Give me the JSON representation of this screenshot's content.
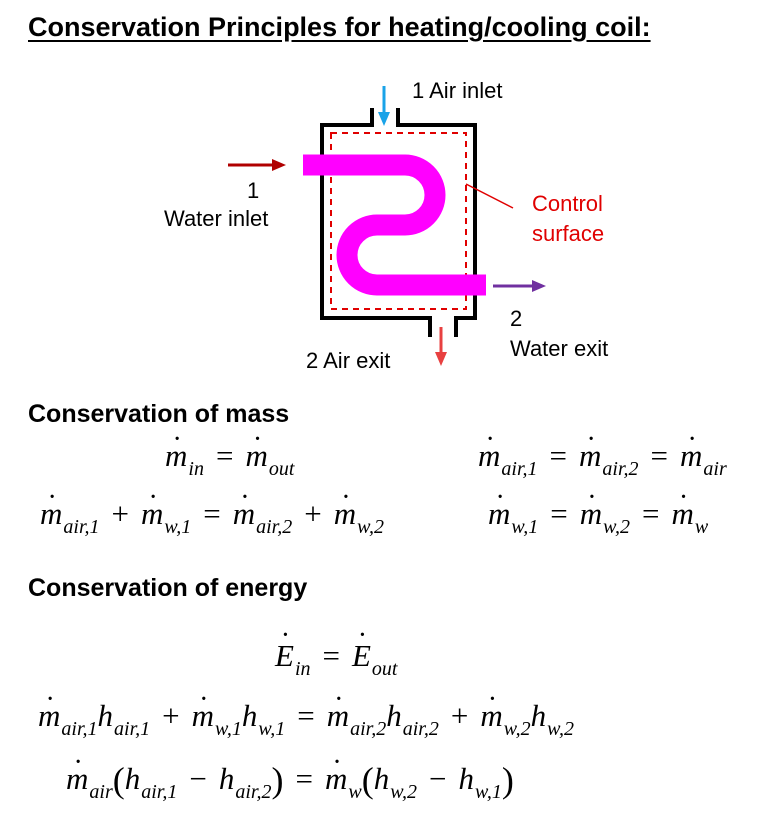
{
  "title": "Conservation Principles for heating/cooling coil:",
  "diagram": {
    "air_inlet": "1  Air inlet",
    "air_exit": "2  Air exit",
    "water_inlet_num": "1",
    "water_inlet": "Water inlet",
    "water_exit_num": "2",
    "water_exit": "Water exit",
    "control_surface_1": "Control",
    "control_surface_2": "surface",
    "colors": {
      "coil": "#ff00ff",
      "control_surface": "#e00000",
      "air_inlet_arrow": "#1aa3e8",
      "air_exit_arrow": "#e84040",
      "water_inlet_arrow": "#b00000",
      "water_exit_arrow": "#7030a0"
    }
  },
  "mass": {
    "heading": "Conservation of mass",
    "in": "in",
    "out": "out",
    "air1": "air,1",
    "air2": "air,2",
    "air": "air",
    "w1": "w,1",
    "w2": "w,2",
    "w": "w"
  },
  "energy": {
    "heading": "Conservation of energy",
    "in": "in",
    "out": "out",
    "air1": "air,1",
    "air2": "air,2",
    "air": "air",
    "w1": "w,1",
    "w2": "w,2",
    "w": "w"
  }
}
